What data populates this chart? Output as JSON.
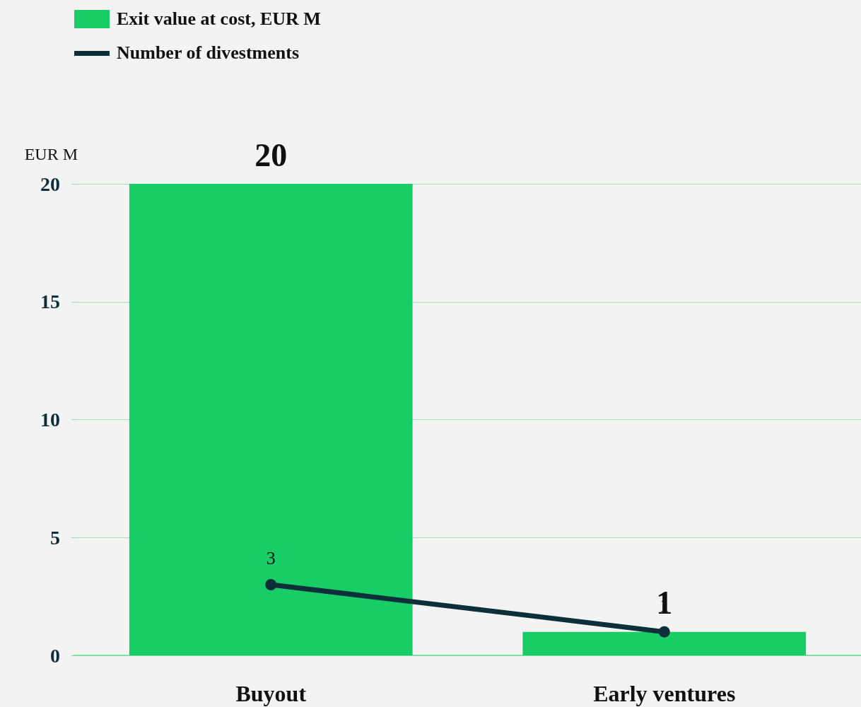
{
  "chart_data": {
    "type": "bar",
    "ylabel": "EUR M",
    "categories": [
      "Buyout",
      "Early ventures"
    ],
    "series": [
      {
        "name": "Exit value at cost, EUR M",
        "color": "#18cc66",
        "values": [
          20,
          1
        ]
      },
      {
        "name": "Number of divestments",
        "type": "line",
        "color": "#0d2f3a",
        "values": [
          3,
          1
        ],
        "marker": "circle",
        "line_style": "solid"
      }
    ],
    "ylim": [
      0,
      20
    ],
    "yticks": [
      0,
      5,
      10,
      15,
      20
    ],
    "grid": "y",
    "legend": "top left",
    "data_labels": true
  }
}
